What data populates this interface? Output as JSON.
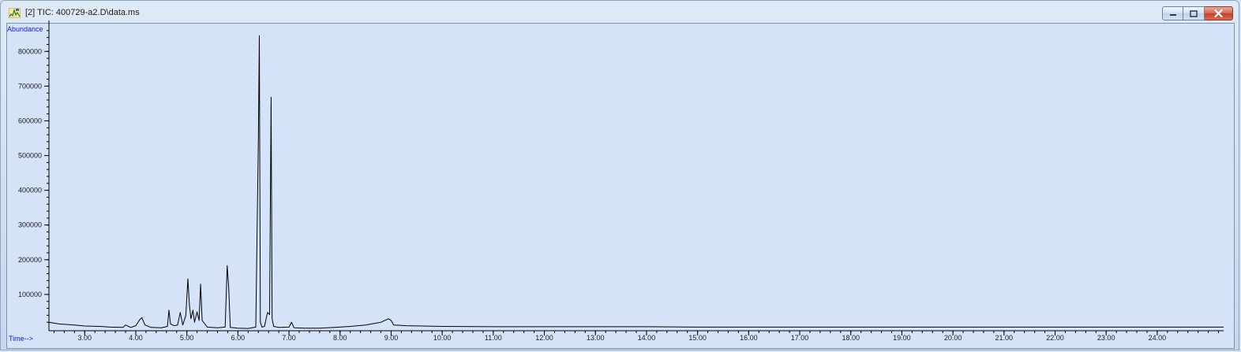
{
  "window": {
    "title": "[2] TIC: 400729-a2.D\\data.ms",
    "app_icon": "chromatogram-app-icon",
    "controls": [
      "minimize-icon",
      "maximize-icon",
      "close-icon"
    ],
    "colors": {
      "plot_background": "#d5e3f9",
      "axis_label_color": "#0b1fd8",
      "trace_color": "#000000",
      "close_button": "#c2402a"
    }
  },
  "chart_data": {
    "type": "line",
    "ylabel": "Abundance",
    "xlabel": "Time-->",
    "xlim": [
      2.3,
      25.3
    ],
    "ylim": [
      0,
      880000
    ],
    "x_ticks": [
      "3.00",
      "4.00",
      "5.00",
      "6.00",
      "7.00",
      "8.00",
      "9.00",
      "10.00",
      "11.00",
      "12.00",
      "13.00",
      "14.00",
      "15.00",
      "16.00",
      "17.00",
      "18.00",
      "19.00",
      "20.00",
      "21.00",
      "22.00",
      "23.00",
      "24.00"
    ],
    "y_ticks": [
      "100000",
      "200000",
      "300000",
      "400000",
      "500000",
      "600000",
      "700000",
      "800000"
    ],
    "grid": false,
    "legend": "none",
    "series": [
      {
        "x": [
          2.3,
          2.5,
          2.8,
          3.0,
          3.3,
          3.5,
          3.75,
          3.8,
          3.9,
          4.0,
          4.08,
          4.12,
          4.18,
          4.3,
          4.5,
          4.62,
          4.65,
          4.68,
          4.75,
          4.82,
          4.87,
          4.92,
          4.98,
          5.02,
          5.05,
          5.08,
          5.12,
          5.15,
          5.2,
          5.24,
          5.27,
          5.3,
          5.4,
          5.6,
          5.75,
          5.79,
          5.82,
          5.85,
          6.0,
          6.2,
          6.35,
          6.4,
          6.42,
          6.44,
          6.47,
          6.52,
          6.58,
          6.62,
          6.65,
          6.67,
          6.7,
          6.8,
          7.0,
          7.05,
          7.1,
          7.3,
          7.6,
          7.9,
          8.2,
          8.5,
          8.8,
          8.95,
          9.0,
          9.05,
          9.3,
          9.6,
          10.0,
          11.0,
          12.0,
          13.0,
          14.0,
          15.0,
          16.0,
          17.0,
          18.0,
          19.0,
          20.0,
          21.0,
          22.0,
          23.0,
          24.0,
          25.0,
          25.3
        ],
        "y": [
          20000,
          15000,
          12000,
          9000,
          8000,
          6000,
          5000,
          12000,
          5000,
          10000,
          28000,
          33000,
          12000,
          5000,
          4000,
          8000,
          55000,
          15000,
          10000,
          12000,
          48000,
          12000,
          40000,
          145000,
          70000,
          30000,
          55000,
          20000,
          50000,
          25000,
          130000,
          25000,
          6000,
          4000,
          6000,
          183000,
          120000,
          5000,
          3000,
          2000,
          6000,
          549000,
          845000,
          20000,
          6000,
          8000,
          48000,
          42000,
          668000,
          30000,
          8000,
          5000,
          6000,
          20000,
          4000,
          3000,
          3000,
          5000,
          8000,
          12000,
          20000,
          30000,
          25000,
          12000,
          10000,
          9000,
          8000,
          7000,
          7000,
          7000,
          7000,
          6000,
          6000,
          6000,
          6000,
          6000,
          6000,
          6000,
          6000,
          6000,
          6000,
          6000,
          6000
        ]
      }
    ]
  }
}
